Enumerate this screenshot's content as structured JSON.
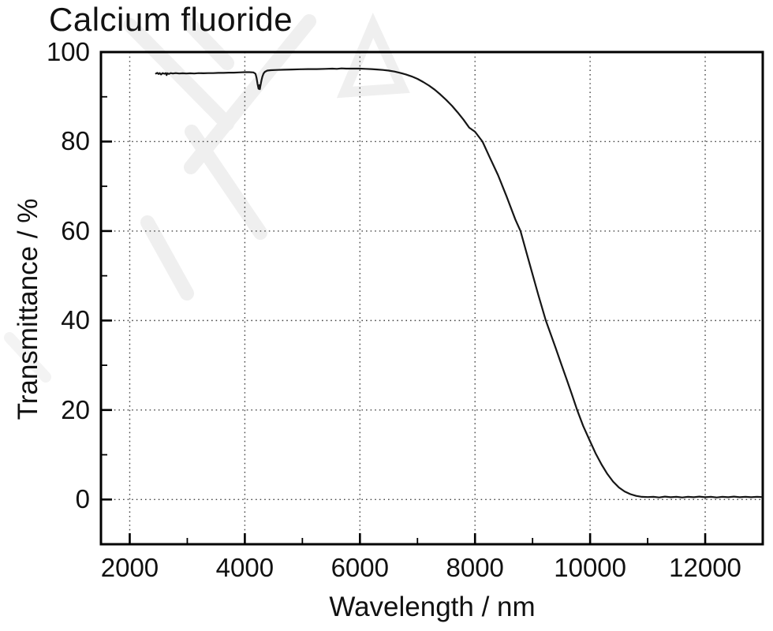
{
  "title": "Calcium fluoride",
  "colors": {
    "background": "#ffffff",
    "curve": "#161616",
    "axis": "#000000",
    "grid": "#484848",
    "text": "#111111",
    "watermark": "#efefef"
  },
  "chart_data": {
    "type": "line",
    "title": "Calcium fluoride",
    "xlabel": "Wavelength / nm",
    "ylabel": "Transmittance / %",
    "xlim": [
      1500,
      13000
    ],
    "ylim": [
      -10,
      100
    ],
    "x_major_ticks": [
      2000,
      4000,
      6000,
      8000,
      10000,
      12000
    ],
    "x_minor_ticks": [
      3000,
      5000,
      7000,
      9000,
      11000
    ],
    "y_major_ticks": [
      0,
      20,
      40,
      60,
      80,
      100
    ],
    "y_minor_ticks": [
      10,
      30,
      50,
      70,
      90
    ],
    "grid": "dotted at major ticks",
    "legend": "none",
    "series": [
      {
        "name": "Calcium fluoride transmittance",
        "points": [
          [
            2455,
            95.2
          ],
          [
            2480,
            95.35
          ],
          [
            2500,
            95.1
          ],
          [
            2520,
            95.3
          ],
          [
            2545,
            95.0
          ],
          [
            2570,
            95.3
          ],
          [
            2600,
            95.15
          ],
          [
            2625,
            95.3
          ],
          [
            2640,
            94.85
          ],
          [
            2655,
            95.25
          ],
          [
            2680,
            95.1
          ],
          [
            2710,
            95.3
          ],
          [
            2750,
            95.2
          ],
          [
            2800,
            95.3
          ],
          [
            2860,
            95.2
          ],
          [
            2920,
            95.25
          ],
          [
            2980,
            95.2
          ],
          [
            3050,
            95.25
          ],
          [
            3120,
            95.2
          ],
          [
            3200,
            95.3
          ],
          [
            3280,
            95.25
          ],
          [
            3360,
            95.3
          ],
          [
            3450,
            95.3
          ],
          [
            3540,
            95.35
          ],
          [
            3630,
            95.35
          ],
          [
            3720,
            95.4
          ],
          [
            3810,
            95.4
          ],
          [
            3900,
            95.45
          ],
          [
            4000,
            95.5
          ],
          [
            4080,
            95.5
          ],
          [
            4150,
            95.45
          ],
          [
            4185,
            95.15
          ],
          [
            4205,
            94.2
          ],
          [
            4222,
            92.8
          ],
          [
            4238,
            91.8
          ],
          [
            4250,
            92.6
          ],
          [
            4260,
            91.7
          ],
          [
            4272,
            92.5
          ],
          [
            4288,
            93.6
          ],
          [
            4305,
            94.5
          ],
          [
            4325,
            95.2
          ],
          [
            4350,
            95.6
          ],
          [
            4390,
            95.85
          ],
          [
            4450,
            95.95
          ],
          [
            4550,
            96.0
          ],
          [
            4680,
            96.05
          ],
          [
            4820,
            96.1
          ],
          [
            4960,
            96.15
          ],
          [
            5100,
            96.2
          ],
          [
            5250,
            96.2
          ],
          [
            5400,
            96.25
          ],
          [
            5520,
            96.3
          ],
          [
            5600,
            96.25
          ],
          [
            5680,
            96.35
          ],
          [
            5760,
            96.3
          ],
          [
            5840,
            96.3
          ],
          [
            5920,
            96.3
          ],
          [
            6000,
            96.3
          ],
          [
            6100,
            96.25
          ],
          [
            6200,
            96.2
          ],
          [
            6300,
            96.1
          ],
          [
            6400,
            96.0
          ],
          [
            6500,
            95.85
          ],
          [
            6600,
            95.65
          ],
          [
            6700,
            95.35
          ],
          [
            6800,
            95.0
          ],
          [
            6900,
            94.55
          ],
          [
            7000,
            94.0
          ],
          [
            7100,
            93.3
          ],
          [
            7200,
            92.5
          ],
          [
            7300,
            91.6
          ],
          [
            7400,
            90.5
          ],
          [
            7500,
            89.3
          ],
          [
            7600,
            88.0
          ],
          [
            7700,
            86.5
          ],
          [
            7800,
            84.9
          ],
          [
            7900,
            83.1
          ],
          [
            8000,
            82.2
          ],
          [
            8130,
            80.0
          ],
          [
            8250,
            76.6
          ],
          [
            8400,
            72.5
          ],
          [
            8550,
            67.7
          ],
          [
            8700,
            62.6
          ],
          [
            8790,
            60.0
          ],
          [
            8900,
            54.9
          ],
          [
            9000,
            50.3
          ],
          [
            9100,
            45.7
          ],
          [
            9230,
            40.0
          ],
          [
            9320,
            36.8
          ],
          [
            9400,
            33.9
          ],
          [
            9500,
            30.2
          ],
          [
            9600,
            26.6
          ],
          [
            9680,
            23.6
          ],
          [
            9775,
            20.0
          ],
          [
            9880,
            16.4
          ],
          [
            10000,
            13.0
          ],
          [
            10100,
            10.2
          ],
          [
            10200,
            7.8
          ],
          [
            10300,
            5.7
          ],
          [
            10400,
            4.0
          ],
          [
            10500,
            2.7
          ],
          [
            10600,
            1.8
          ],
          [
            10700,
            1.2
          ],
          [
            10800,
            0.8
          ],
          [
            10900,
            0.6
          ],
          [
            11000,
            0.55
          ],
          [
            11100,
            0.6
          ],
          [
            11200,
            0.45
          ],
          [
            11300,
            0.65
          ],
          [
            11400,
            0.5
          ],
          [
            11500,
            0.6
          ],
          [
            11600,
            0.45
          ],
          [
            11700,
            0.6
          ],
          [
            11800,
            0.5
          ],
          [
            11900,
            0.65
          ],
          [
            12000,
            0.5
          ],
          [
            12100,
            0.6
          ],
          [
            12200,
            0.45
          ],
          [
            12300,
            0.6
          ],
          [
            12400,
            0.5
          ],
          [
            12500,
            0.65
          ],
          [
            12600,
            0.5
          ],
          [
            12700,
            0.6
          ],
          [
            12800,
            0.5
          ],
          [
            12900,
            0.6
          ],
          [
            12990,
            0.55
          ]
        ]
      }
    ]
  }
}
